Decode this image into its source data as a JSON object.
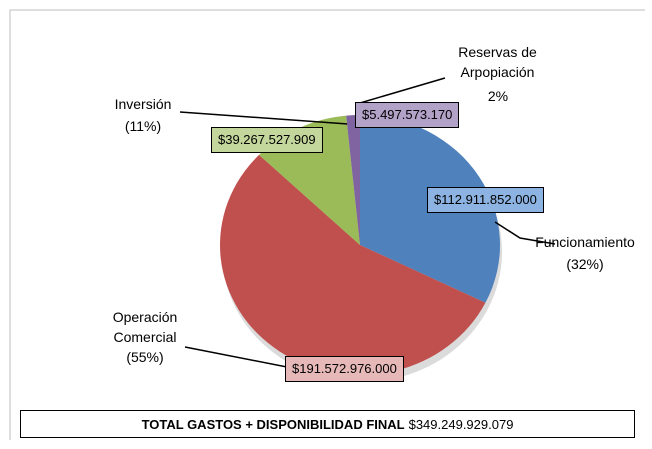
{
  "chart_data": {
    "type": "pie",
    "categories": [
      "Funcionamiento",
      "Operación Comercial",
      "Inversión",
      "Reservas de Arpopiación"
    ],
    "values": [
      112911852000,
      191572976000,
      39267527909,
      5497573170
    ],
    "value_labels": [
      "$112.911.852.000",
      "$191.572.976.000",
      "$39.267.527.909",
      "$5.497.573.170"
    ],
    "percent_labels": [
      "(32%)",
      "(55%)",
      "(11%)",
      "2%"
    ],
    "colors": [
      "#4f81bd",
      "#c0504d",
      "#9bbb59",
      "#8064a2"
    ],
    "label_fills": [
      "#8db3e2",
      "#e6b9b8",
      "#c3d69b",
      "#b3a2c7"
    ],
    "total_label": "TOTAL GASTOS + DISPONIBILIDAD FINAL",
    "total_value": 349249929079,
    "total_value_label": "$349.249.929.079"
  }
}
